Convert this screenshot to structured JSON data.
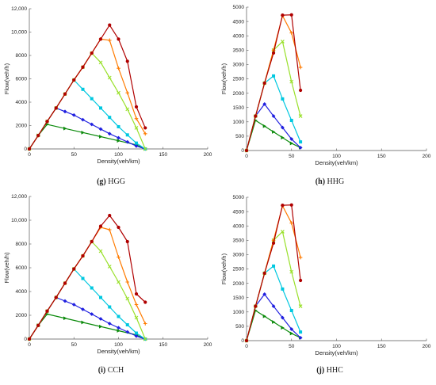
{
  "chart_data": [
    {
      "type": "line",
      "letter": "(g)",
      "name": "HGG",
      "xlabel": "Density(veh/km)",
      "ylabel": "Flow(veh/h)",
      "xlim": [
        0,
        200
      ],
      "ylim": [
        0,
        12000
      ],
      "xticks": [
        "0",
        "50",
        "100",
        "150",
        "200"
      ],
      "yticks": [
        "0",
        "2000",
        "4000",
        "6000",
        "8000",
        "10,000",
        "12,000"
      ],
      "series": [
        {
          "color": "#0a8a0a",
          "marker": "triangle",
          "x": [
            0,
            10,
            20,
            40,
            60,
            80,
            100,
            120,
            130
          ],
          "y": [
            0,
            1150,
            2100,
            1750,
            1400,
            1050,
            700,
            350,
            0
          ]
        },
        {
          "color": "#1f1fe0",
          "marker": "diamond",
          "x": [
            0,
            10,
            20,
            30,
            40,
            50,
            60,
            70,
            80,
            90,
            100,
            110,
            120,
            130
          ],
          "y": [
            0,
            1150,
            2350,
            3500,
            3200,
            2900,
            2500,
            2100,
            1700,
            1300,
            950,
            600,
            250,
            0
          ]
        },
        {
          "color": "#00c8e0",
          "marker": "square",
          "x": [
            0,
            10,
            20,
            30,
            40,
            50,
            60,
            70,
            80,
            90,
            100,
            110,
            120,
            130
          ],
          "y": [
            0,
            1150,
            2350,
            3500,
            4700,
            5900,
            5100,
            4300,
            3500,
            2700,
            1900,
            1200,
            500,
            0
          ]
        },
        {
          "color": "#99e02a",
          "marker": "x",
          "x": [
            0,
            10,
            20,
            30,
            40,
            50,
            60,
            70,
            80,
            90,
            100,
            110,
            120,
            130
          ],
          "y": [
            0,
            1150,
            2350,
            3500,
            4700,
            5900,
            7000,
            8200,
            7400,
            6100,
            4800,
            3400,
            1800,
            0
          ]
        },
        {
          "color": "#ff7b00",
          "marker": "plus",
          "x": [
            0,
            10,
            20,
            30,
            40,
            50,
            60,
            70,
            80,
            90,
            100,
            110,
            120,
            130
          ],
          "y": [
            0,
            1150,
            2350,
            3500,
            4700,
            5900,
            7000,
            8200,
            9400,
            9300,
            6900,
            4800,
            2600,
            1300
          ]
        },
        {
          "color": "#b00000",
          "marker": "circle",
          "x": [
            0,
            10,
            20,
            30,
            40,
            50,
            60,
            70,
            80,
            90,
            100,
            110,
            120,
            130
          ],
          "y": [
            0,
            1150,
            2350,
            3500,
            4700,
            5900,
            7000,
            8200,
            9400,
            10600,
            9400,
            7500,
            3600,
            1800
          ]
        }
      ]
    },
    {
      "type": "line",
      "letter": "(h)",
      "name": "HHG",
      "xlabel": "Density(veh/km)",
      "ylabel": "Flow(veh/h)",
      "xlim": [
        0,
        200
      ],
      "ylim": [
        0,
        5000
      ],
      "xticks": [
        "0",
        "50",
        "100",
        "150",
        "200"
      ],
      "yticks": [
        "0",
        "500",
        "1000",
        "1500",
        "2000",
        "2500",
        "3000",
        "3500",
        "4000",
        "4500",
        "5000"
      ],
      "series": [
        {
          "color": "#0a8a0a",
          "marker": "triangle",
          "x": [
            0,
            10,
            20,
            30,
            40,
            50,
            60
          ],
          "y": [
            0,
            1050,
            850,
            650,
            450,
            250,
            100
          ]
        },
        {
          "color": "#1f1fe0",
          "marker": "diamond",
          "x": [
            0,
            10,
            20,
            30,
            40,
            50,
            60
          ],
          "y": [
            0,
            1200,
            1620,
            1200,
            800,
            400,
            100
          ]
        },
        {
          "color": "#00c8e0",
          "marker": "square",
          "x": [
            0,
            10,
            20,
            30,
            40,
            50,
            60
          ],
          "y": [
            0,
            1200,
            2350,
            2600,
            1800,
            1050,
            300
          ]
        },
        {
          "color": "#99e02a",
          "marker": "x",
          "x": [
            0,
            10,
            20,
            30,
            40,
            50,
            60
          ],
          "y": [
            0,
            1200,
            2350,
            3500,
            3800,
            2400,
            1200
          ]
        },
        {
          "color": "#ff7b00",
          "marker": "plus",
          "x": [
            0,
            10,
            20,
            30,
            40,
            50,
            60
          ],
          "y": [
            0,
            1200,
            2350,
            3500,
            4700,
            4100,
            2900
          ]
        },
        {
          "color": "#b00000",
          "marker": "circle",
          "x": [
            0,
            10,
            20,
            30,
            40,
            50,
            60
          ],
          "y": [
            0,
            1200,
            2350,
            3400,
            4720,
            4730,
            2100
          ]
        }
      ]
    },
    {
      "type": "line",
      "letter": "(i)",
      "name": "CCH",
      "xlabel": "Density(veh/km)",
      "ylabel": "Flow(veh/h)",
      "xlim": [
        0,
        200
      ],
      "ylim": [
        0,
        12000
      ],
      "xticks": [
        "0",
        "50",
        "100",
        "150",
        "200"
      ],
      "yticks": [
        "0",
        "2000",
        "4000",
        "6000",
        "8000",
        "10,000",
        "12,000"
      ],
      "series": [
        {
          "color": "#0a8a0a",
          "marker": "triangle",
          "x": [
            0,
            10,
            20,
            40,
            60,
            80,
            100,
            120,
            130
          ],
          "y": [
            0,
            1150,
            2100,
            1750,
            1400,
            1050,
            700,
            350,
            0
          ]
        },
        {
          "color": "#1f1fe0",
          "marker": "diamond",
          "x": [
            0,
            10,
            20,
            30,
            40,
            50,
            60,
            70,
            80,
            90,
            100,
            110,
            120,
            130
          ],
          "y": [
            0,
            1150,
            2350,
            3500,
            3200,
            2900,
            2500,
            2100,
            1700,
            1300,
            950,
            600,
            250,
            0
          ]
        },
        {
          "color": "#00c8e0",
          "marker": "square",
          "x": [
            0,
            10,
            20,
            30,
            40,
            50,
            60,
            70,
            80,
            90,
            100,
            110,
            120,
            130
          ],
          "y": [
            0,
            1150,
            2350,
            3500,
            4700,
            5900,
            5100,
            4300,
            3500,
            2700,
            1900,
            1200,
            500,
            0
          ]
        },
        {
          "color": "#99e02a",
          "marker": "x",
          "x": [
            0,
            10,
            20,
            30,
            40,
            50,
            60,
            70,
            80,
            90,
            100,
            110,
            120,
            130
          ],
          "y": [
            0,
            1150,
            2350,
            3500,
            4700,
            5900,
            7000,
            8200,
            7400,
            6100,
            4800,
            3400,
            1800,
            0
          ]
        },
        {
          "color": "#ff7b00",
          "marker": "plus",
          "x": [
            0,
            10,
            20,
            30,
            40,
            50,
            60,
            70,
            80,
            90,
            100,
            110,
            120,
            130
          ],
          "y": [
            0,
            1150,
            2350,
            3500,
            4700,
            5900,
            7000,
            8200,
            9400,
            9200,
            6900,
            4800,
            2900,
            1300
          ]
        },
        {
          "color": "#b00000",
          "marker": "circle",
          "x": [
            0,
            10,
            20,
            30,
            40,
            50,
            60,
            70,
            80,
            90,
            100,
            110,
            120,
            130
          ],
          "y": [
            0,
            1150,
            2350,
            3500,
            4700,
            5900,
            7000,
            8200,
            9500,
            10400,
            9400,
            8200,
            3800,
            3100
          ]
        }
      ]
    },
    {
      "type": "line",
      "letter": "(j)",
      "name": "HHC",
      "xlabel": "Density(veh/km)",
      "ylabel": "Flow(veh/h)",
      "xlim": [
        0,
        200
      ],
      "ylim": [
        0,
        5000
      ],
      "xticks": [
        "0",
        "50",
        "100",
        "150",
        "200"
      ],
      "yticks": [
        "0",
        "500",
        "1000",
        "1500",
        "2000",
        "2500",
        "3000",
        "3500",
        "4000",
        "4500",
        "5000"
      ],
      "series": [
        {
          "color": "#0a8a0a",
          "marker": "triangle",
          "x": [
            0,
            10,
            20,
            30,
            40,
            50,
            60
          ],
          "y": [
            0,
            1050,
            850,
            650,
            450,
            250,
            100
          ]
        },
        {
          "color": "#1f1fe0",
          "marker": "diamond",
          "x": [
            0,
            10,
            20,
            30,
            40,
            50,
            60
          ],
          "y": [
            0,
            1200,
            1620,
            1200,
            800,
            400,
            100
          ]
        },
        {
          "color": "#00c8e0",
          "marker": "square",
          "x": [
            0,
            10,
            20,
            30,
            40,
            50,
            60
          ],
          "y": [
            0,
            1200,
            2350,
            2600,
            1800,
            1050,
            300
          ]
        },
        {
          "color": "#99e02a",
          "marker": "x",
          "x": [
            0,
            10,
            20,
            30,
            40,
            50,
            60
          ],
          "y": [
            0,
            1200,
            2350,
            3500,
            3800,
            2400,
            1200
          ]
        },
        {
          "color": "#ff7b00",
          "marker": "plus",
          "x": [
            0,
            10,
            20,
            30,
            40,
            50,
            60
          ],
          "y": [
            0,
            1200,
            2350,
            3500,
            4700,
            4100,
            2900
          ]
        },
        {
          "color": "#b00000",
          "marker": "circle",
          "x": [
            0,
            10,
            20,
            30,
            40,
            50,
            60
          ],
          "y": [
            0,
            1200,
            2350,
            3400,
            4720,
            4730,
            2100
          ]
        }
      ]
    }
  ]
}
